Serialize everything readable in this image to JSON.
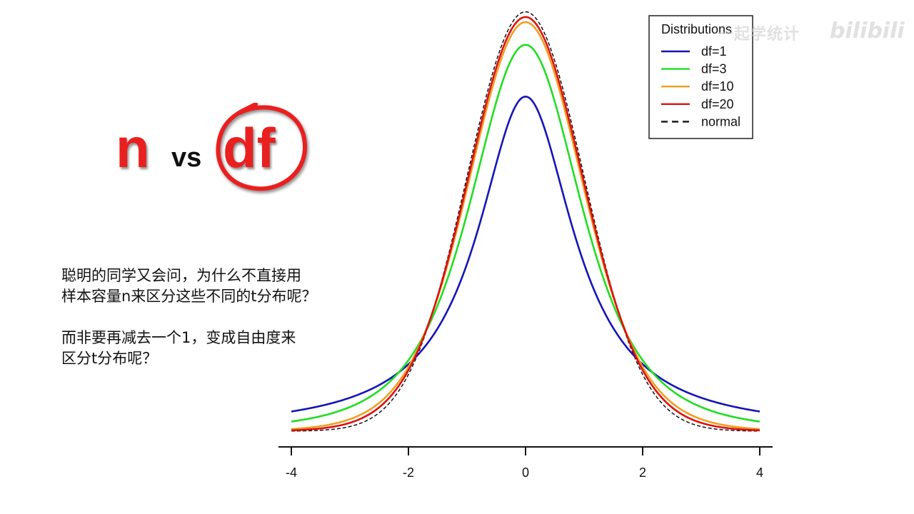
{
  "slide": {
    "title_n": "n",
    "title_vs": "vs",
    "title_df": "df",
    "question_paragraphs": [
      "聪明的同学又会问，为什么不直接用\n样本容量n来区分这些不同的t分布呢？",
      "而非要再减去一个1，变成自由度来\n区分t分布呢？"
    ],
    "watermark_text": "一起学统计",
    "watermark_logo": "bilibili",
    "accent_color": "#ea1f1f"
  },
  "chart_data": {
    "type": "line",
    "title": "",
    "xlabel": "",
    "ylabel": "",
    "xlim": [
      -4,
      4
    ],
    "ylim": [
      0,
      0.4
    ],
    "x_ticks": [
      -4,
      -2,
      0,
      2,
      4
    ],
    "x_tick_labels": [
      "-4",
      "-2",
      "0",
      "2",
      "4"
    ],
    "y_axis_visible": false,
    "grid": false,
    "legend": {
      "title": "Distributions",
      "placement": "top-right"
    },
    "series": [
      {
        "name": "df=1",
        "df": 1,
        "color": "#1515b8",
        "dash": "solid",
        "peak": 0.318
      },
      {
        "name": "df=3",
        "df": 3,
        "color": "#22dd22",
        "dash": "solid",
        "peak": 0.368
      },
      {
        "name": "df=10",
        "df": 10,
        "color": "#f0a020",
        "dash": "solid",
        "peak": 0.389
      },
      {
        "name": "df=20",
        "df": 20,
        "color": "#dd1111",
        "dash": "solid",
        "peak": 0.394
      },
      {
        "name": "normal",
        "df": null,
        "color": "#111111",
        "dash": "dashed",
        "peak": 0.399
      }
    ]
  }
}
